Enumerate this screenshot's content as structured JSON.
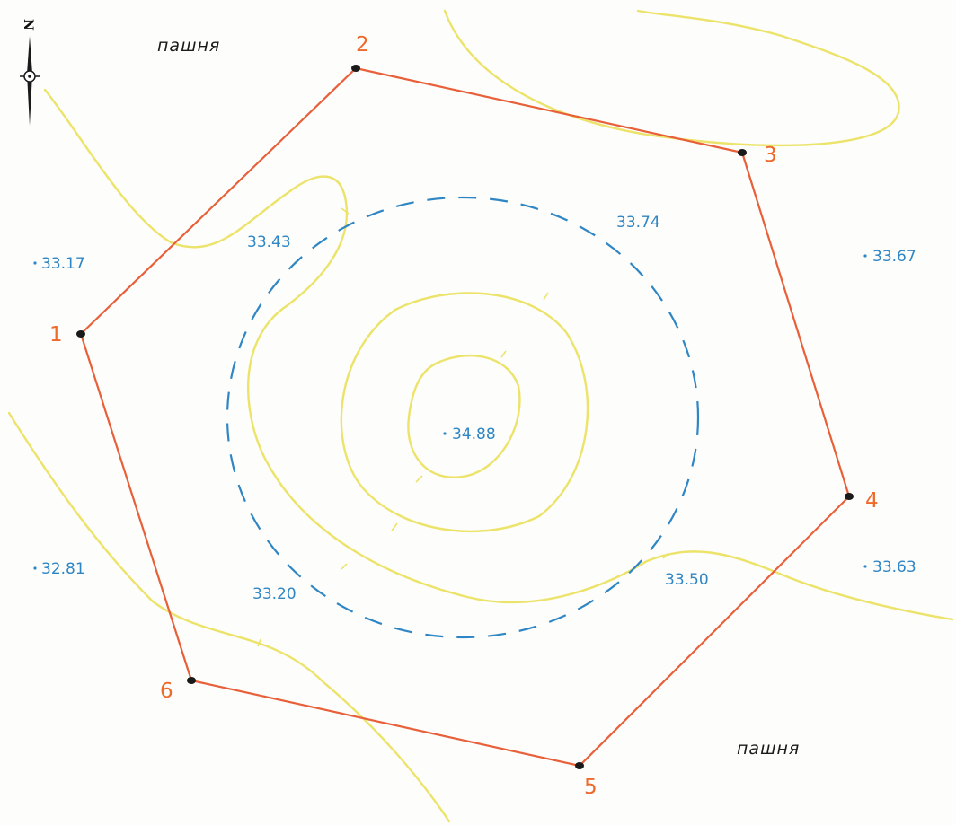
{
  "colors": {
    "boundary": "#e8603a",
    "contour": "#ece36a",
    "dashed_contour": "#2f86c4",
    "spot_text": "#2f86c4",
    "vertex_text": "#ee6a2a"
  },
  "north_arrow": {
    "letter": "N",
    "icon": "north-arrow-icon"
  },
  "land_labels": {
    "top": "пашня",
    "bottom": "пашня"
  },
  "vertices": [
    {
      "id": "1",
      "label": "1"
    },
    {
      "id": "2",
      "label": "2"
    },
    {
      "id": "3",
      "label": "3"
    },
    {
      "id": "4",
      "label": "4"
    },
    {
      "id": "5",
      "label": "5"
    },
    {
      "id": "6",
      "label": "6"
    }
  ],
  "spot_heights": {
    "h1": "33.17",
    "h2": "33.43",
    "h3": "33.74",
    "h4": "33.67",
    "h5": "34.88",
    "h6": "32.81",
    "h7": "33.20",
    "h8": "33.50",
    "h9": "33.63"
  }
}
